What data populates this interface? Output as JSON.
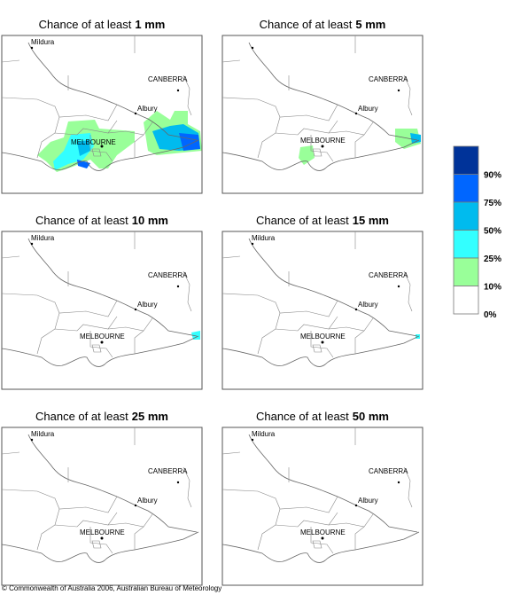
{
  "panels": [
    {
      "title_prefix": "Chance of at least",
      "title_amount": "1 mm",
      "places": [
        "Mildura",
        "CANBERRA",
        "Albury",
        "MELBOURNE"
      ]
    },
    {
      "title_prefix": "Chance of at least",
      "title_amount": "5 mm",
      "places": [
        "CANBERRA",
        "Albury",
        "MELBOURNE"
      ]
    },
    {
      "title_prefix": "Chance of at least",
      "title_amount": "10 mm",
      "places": [
        "Mildura",
        "CANBERRA",
        "Albury",
        "MELBOURNE"
      ]
    },
    {
      "title_prefix": "Chance of at least",
      "title_amount": "15 mm",
      "places": [
        "Mildura",
        "CANBERRA",
        "Albury",
        "MELBOURNE"
      ]
    },
    {
      "title_prefix": "Chance of at least",
      "title_amount": "25 mm",
      "places": [
        "Mildura",
        "CANBERRA",
        "Albury",
        "MELBOURNE"
      ]
    },
    {
      "title_prefix": "Chance of at least",
      "title_amount": "50 mm",
      "places": [
        "Mildura",
        "CANBERRA",
        "Albury",
        "MELBOURNE"
      ]
    }
  ],
  "legend": {
    "colors": [
      "#003399",
      "#0066ff",
      "#00bbee",
      "#33ffff",
      "#99ff99",
      "#ffffff"
    ],
    "labels": [
      "90%",
      "75%",
      "50%",
      "25%",
      "10%",
      "0%"
    ]
  },
  "footer": "© Commonwealth of Australia 2006, Australian Bureau of Meteorology"
}
